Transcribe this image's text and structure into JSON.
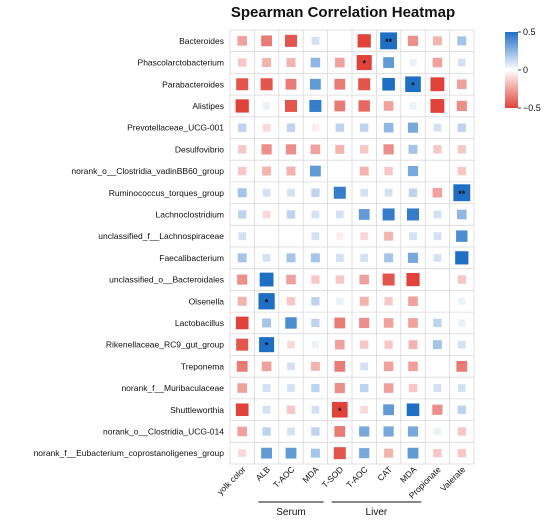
{
  "chart_data": {
    "type": "heatmap",
    "title": "Spearman Correlation Heatmap",
    "rows": [
      "Bacteroides",
      "Phascolarctobacterium",
      "Parabacteroides",
      "Alistipes",
      "Prevotellaceae_UCG-001",
      "Desulfovibrio",
      "norank_o__Clostridia_vadinBB60_group",
      "Ruminococcus_torques_group",
      "Lachnoclostridium",
      "unclassified_f__Lachnospiraceae",
      "Faecalibacterium",
      "unclassified_o__Bacteroidales",
      "Olsenella",
      "Lactobacillus",
      "Rikenellaceae_RC9_gut_group",
      "Treponema",
      "norank_f__Muribaculaceae",
      "Shuttleworthia",
      "norank_o__Clostridia_UCG-014",
      "norank_f__Eubacterium_coprostanoligenes_group"
    ],
    "columns": [
      "yolk color",
      "ALB",
      "T-AOC",
      "MDA",
      "T-SOD",
      "T-AOC",
      "CAT",
      "MDA",
      "Propionate",
      "Valerate"
    ],
    "groups": [
      {
        "label": "Serum",
        "start": 1,
        "end": 3
      },
      {
        "label": "Liver",
        "start": 4,
        "end": 7
      }
    ],
    "values": [
      [
        -0.25,
        -0.35,
        -0.45,
        0.1,
        0.0,
        -0.55,
        0.85,
        -0.3,
        -0.2,
        0.2
      ],
      [
        -0.15,
        -0.2,
        -0.2,
        0.25,
        -0.25,
        -0.7,
        0.35,
        0.05,
        -0.25,
        0.1
      ],
      [
        -0.45,
        -0.45,
        -0.35,
        0.35,
        -0.35,
        -0.45,
        0.5,
        0.75,
        -0.6,
        -0.25
      ],
      [
        -0.55,
        0.05,
        -0.45,
        0.45,
        -0.35,
        -0.4,
        -0.25,
        0.05,
        -0.6,
        -0.3
      ],
      [
        0.15,
        -0.1,
        0.15,
        -0.05,
        0.15,
        0.15,
        0.25,
        0.3,
        0.1,
        0.15
      ],
      [
        -0.15,
        -0.3,
        -0.3,
        -0.25,
        -0.2,
        -0.15,
        -0.3,
        0.2,
        -0.15,
        -0.15
      ],
      [
        -0.15,
        -0.2,
        -0.2,
        0.35,
        0.0,
        -0.2,
        -0.15,
        0.3,
        0.0,
        -0.15
      ],
      [
        0.2,
        0.1,
        0.1,
        0.15,
        0.45,
        0.1,
        0.1,
        0.15,
        -0.25,
        0.85
      ],
      [
        0.15,
        -0.1,
        0.15,
        0.1,
        0.1,
        0.35,
        0.45,
        0.45,
        0.1,
        0.25
      ],
      [
        0.1,
        0.0,
        0.0,
        0.1,
        -0.05,
        -0.1,
        -0.2,
        0.1,
        0.1,
        0.4
      ],
      [
        0.2,
        0.1,
        0.2,
        0.2,
        0.1,
        0.1,
        0.2,
        0.3,
        0.1,
        0.55
      ],
      [
        -0.3,
        0.6,
        -0.25,
        -0.15,
        -0.15,
        -0.25,
        -0.45,
        -0.55,
        0.0,
        -0.15
      ],
      [
        -0.2,
        0.8,
        -0.15,
        0.15,
        0.05,
        -0.2,
        -0.15,
        -0.25,
        0.0,
        0.05
      ],
      [
        -0.5,
        0.2,
        0.4,
        0.15,
        -0.35,
        -0.3,
        -0.25,
        -0.25,
        0.15,
        0.05
      ],
      [
        -0.45,
        0.7,
        -0.1,
        0.05,
        -0.25,
        -0.15,
        -0.15,
        -0.2,
        0.2,
        0.1
      ],
      [
        -0.35,
        -0.25,
        0.1,
        -0.2,
        -0.35,
        0.1,
        -0.25,
        -0.25,
        0.0,
        -0.35
      ],
      [
        -0.25,
        0.1,
        0.1,
        0.15,
        -0.3,
        0.15,
        -0.25,
        -0.15,
        0.1,
        0.1
      ],
      [
        -0.5,
        0.1,
        -0.15,
        0.1,
        -0.75,
        -0.1,
        0.35,
        0.5,
        -0.3,
        0.15
      ],
      [
        -0.25,
        0.15,
        0.1,
        0.15,
        -0.35,
        0.3,
        0.3,
        0.3,
        0.05,
        -0.15
      ],
      [
        -0.1,
        0.35,
        0.35,
        0.2,
        -0.45,
        0.3,
        -0.2,
        0.35,
        -0.15,
        -0.15
      ]
    ],
    "significance": [
      {
        "row": 0,
        "col": 6,
        "label": "**"
      },
      {
        "row": 1,
        "col": 5,
        "label": "*"
      },
      {
        "row": 2,
        "col": 7,
        "label": "*"
      },
      {
        "row": 7,
        "col": 9,
        "label": "**"
      },
      {
        "row": 12,
        "col": 1,
        "label": "*"
      },
      {
        "row": 14,
        "col": 1,
        "label": "*"
      },
      {
        "row": 17,
        "col": 4,
        "label": "*"
      }
    ],
    "colorbar": {
      "min": -0.5,
      "max": 0.5,
      "ticks": [
        0.5,
        0,
        -0.5
      ],
      "tick_labels": [
        "0.5",
        "0",
        "−0.5"
      ],
      "high_color": "#1f6fc5",
      "mid_color": "#ffffff",
      "low_color": "#e0433a"
    }
  }
}
